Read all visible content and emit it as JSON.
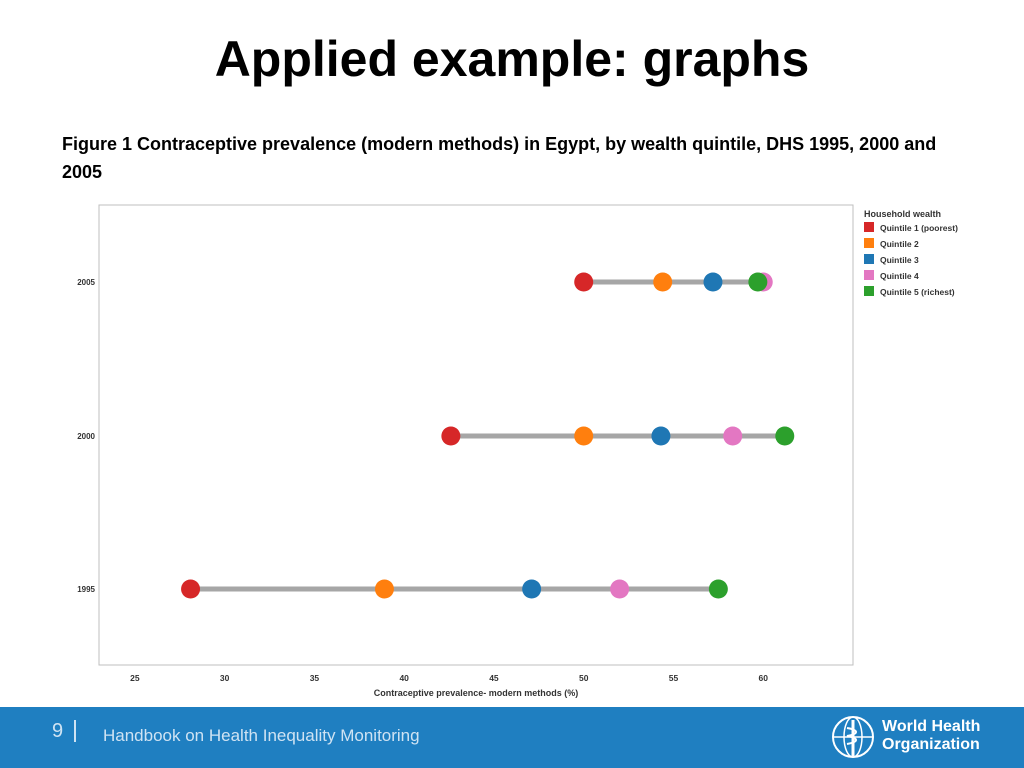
{
  "slide": {
    "title": "Applied example: graphs",
    "caption": "Figure 1 Contraceptive prevalence (modern methods) in Egypt, by wealth quintile, DHS 1995, 2000 and 2005"
  },
  "footer": {
    "page_number": "9",
    "handbook": "Handbook on Health Inequality Monitoring",
    "org_line1": "World Health",
    "org_line2": "Organization"
  },
  "chart_data": {
    "type": "scatter",
    "xlabel": "Contraceptive prevalence- modern methods (%)",
    "ylabel": "",
    "xlim": [
      23,
      65
    ],
    "x_ticks": [
      25,
      30,
      35,
      40,
      45,
      50,
      55,
      60
    ],
    "categories": [
      "2005",
      "2000",
      "1995"
    ],
    "legend_title": "Household wealth",
    "legend_position": "top-right",
    "grid": false,
    "series": [
      {
        "name": "Quintile 1 (poorest)",
        "color": "#d62728",
        "values": [
          50.0,
          42.6,
          28.1
        ]
      },
      {
        "name": "Quintile 2",
        "color": "#ff7f0e",
        "values": [
          54.4,
          50.0,
          38.9
        ]
      },
      {
        "name": "Quintile 3",
        "color": "#1f77b4",
        "values": [
          57.2,
          54.3,
          47.1
        ]
      },
      {
        "name": "Quintile 4",
        "color": "#e377c2",
        "values": [
          60.0,
          58.3,
          52.0
        ]
      },
      {
        "name": "Quintile 5 (richest)",
        "color": "#2ca02c",
        "values": [
          59.7,
          61.2,
          57.5
        ]
      }
    ],
    "range_line_color": "#a6a6a6"
  }
}
